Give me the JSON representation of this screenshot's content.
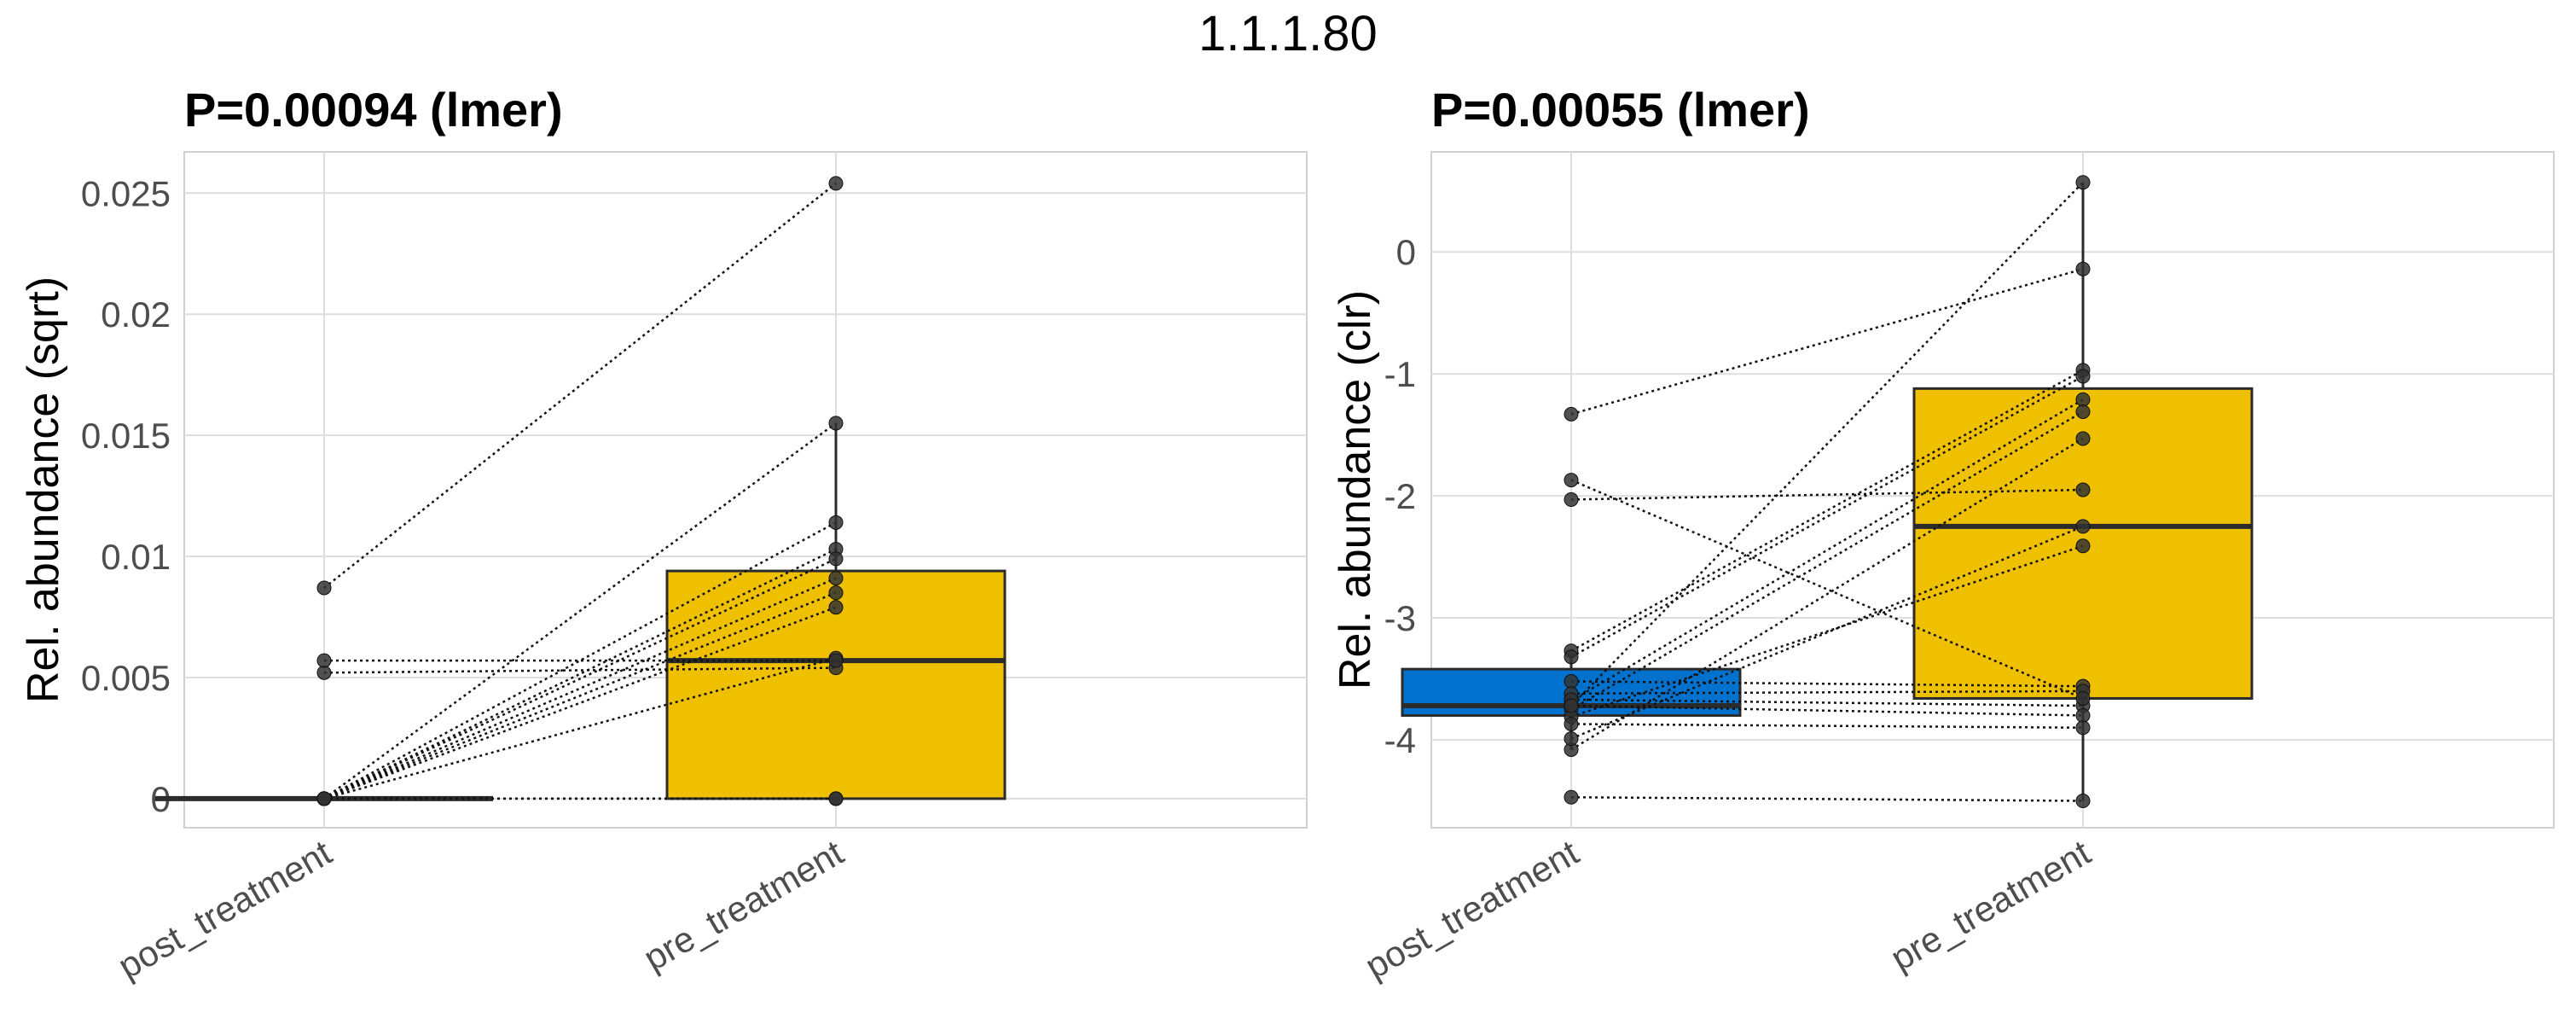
{
  "figure_title": "1.1.1.80",
  "colors": {
    "post_fill": "#0072CE",
    "pre_fill": "#EFC000",
    "box_stroke": "#2b2b2b",
    "point": "#333333",
    "grid": "#dedede",
    "panel_border": "#d0d0d0"
  },
  "chart_data": [
    {
      "type": "box",
      "title": "P=0.00094 (lmer)",
      "xlabel": "",
      "ylabel": "Rel. abundance (sqrt)",
      "categories": [
        "post_treatment",
        "pre_treatment"
      ],
      "ylim": [
        -0.0012,
        0.0267
      ],
      "yticks": [
        0,
        0.005,
        0.01,
        0.015,
        0.02,
        0.025
      ],
      "ytick_labels": [
        "0",
        "0.005",
        "0.01",
        "0.015",
        "0.02",
        "0.025"
      ],
      "boxes": [
        {
          "category": "post_treatment",
          "min": 0,
          "q1": 0,
          "median": 0,
          "q3": 0,
          "max": 0
        },
        {
          "category": "pre_treatment",
          "min": 0,
          "q1": 0,
          "median": 0.0057,
          "q3": 0.0094,
          "max": 0.0155
        }
      ],
      "paired_points": [
        {
          "post": 0.0087,
          "pre": 0.0254
        },
        {
          "post": 0,
          "pre": 0.0155
        },
        {
          "post": 0,
          "pre": 0.0114
        },
        {
          "post": 0,
          "pre": 0.0103
        },
        {
          "post": 0,
          "pre": 0.0099
        },
        {
          "post": 0,
          "pre": 0.0091
        },
        {
          "post": 0,
          "pre": 0.0085
        },
        {
          "post": 0,
          "pre": 0.0079
        },
        {
          "post": 0,
          "pre": 0.0058
        },
        {
          "post": 0.0052,
          "pre": 0.0054
        },
        {
          "post": 0.0057,
          "pre": 0.0057
        },
        {
          "post": 0,
          "pre": 0
        },
        {
          "post": 0,
          "pre": 0
        }
      ]
    },
    {
      "type": "box",
      "title": "P=0.00055 (lmer)",
      "xlabel": "",
      "ylabel": "Rel. abundance (clr)",
      "categories": [
        "post_treatment",
        "pre_treatment"
      ],
      "ylim": [
        -4.72,
        0.82
      ],
      "yticks": [
        -4,
        -3,
        -2,
        -1,
        0
      ],
      "ytick_labels": [
        "-4",
        "-3",
        "-2",
        "-1",
        "0"
      ],
      "boxes": [
        {
          "category": "post_treatment",
          "min": -4.08,
          "q1": -3.8,
          "median": -3.72,
          "q3": -3.42,
          "max": -3.3
        },
        {
          "category": "pre_treatment",
          "min": -4.5,
          "q1": -3.66,
          "median": -2.25,
          "q3": -1.12,
          "max": 0.57
        }
      ],
      "paired_points": [
        {
          "post": -3.72,
          "pre": 0.57
        },
        {
          "post": -1.33,
          "pre": -0.14
        },
        {
          "post": -3.27,
          "pre": -0.97
        },
        {
          "post": -3.32,
          "pre": -1.02
        },
        {
          "post": -3.68,
          "pre": -1.21
        },
        {
          "post": -3.75,
          "pre": -1.31
        },
        {
          "post": -4.08,
          "pre": -1.53
        },
        {
          "post": -2.03,
          "pre": -1.95
        },
        {
          "post": -3.99,
          "pre": -2.25
        },
        {
          "post": -3.81,
          "pre": -2.41
        },
        {
          "post": -3.52,
          "pre": -3.56
        },
        {
          "post": -3.62,
          "pre": -3.6
        },
        {
          "post": -3.67,
          "pre": -3.72
        },
        {
          "post": -3.72,
          "pre": -3.8
        },
        {
          "post": -3.87,
          "pre": -3.9
        },
        {
          "post": -4.47,
          "pre": -4.5
        },
        {
          "post": -1.87,
          "pre": -3.66
        }
      ]
    }
  ]
}
